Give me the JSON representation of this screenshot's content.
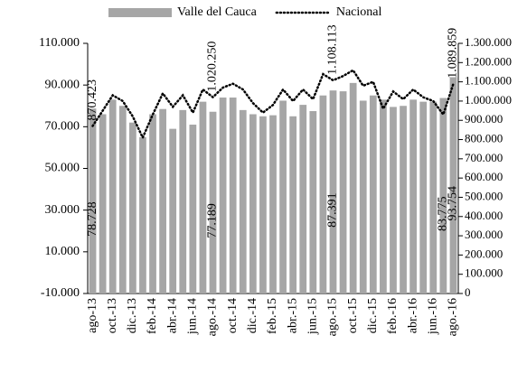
{
  "chart_data": {
    "type": "bar-line",
    "categories": [
      "ago-13",
      null,
      "oct.-13",
      null,
      "dic.-13",
      null,
      "feb.-14",
      null,
      "abr.-14",
      null,
      "jun.-14",
      null,
      "ago.-14",
      null,
      "oct.-14",
      null,
      "dic.-14",
      null,
      "feb.-15",
      null,
      "abr.-15",
      null,
      "jun.-15",
      null,
      "ago.-15",
      null,
      "oct.-15",
      null,
      "dic.-15",
      null,
      "feb.-16",
      null,
      "abr.-16",
      null,
      "jun.-16",
      null,
      "ago.-16"
    ],
    "series": [
      {
        "name": "Valle del Cauca",
        "color": "#a6a6a6",
        "kind": "bar",
        "values": [
          78728,
          76000,
          83000,
          80000,
          72000,
          65000,
          76000,
          78500,
          69000,
          78000,
          71000,
          82000,
          77189,
          84000,
          84000,
          78000,
          76000,
          75000,
          75500,
          82500,
          75000,
          80500,
          77500,
          85000,
          87391,
          87000,
          91000,
          82500,
          85000,
          83000,
          79500,
          80000,
          83000,
          82000,
          82000,
          83775,
          93754
        ],
        "value_labels": [
          "78.728",
          null,
          null,
          null,
          null,
          null,
          null,
          null,
          null,
          null,
          null,
          null,
          "77.189",
          null,
          null,
          null,
          null,
          null,
          null,
          null,
          null,
          null,
          null,
          null,
          "87.391",
          null,
          null,
          null,
          null,
          null,
          null,
          null,
          null,
          null,
          null,
          "83.775",
          "93.754"
        ]
      },
      {
        "name": "Nacional",
        "color": "#000000",
        "kind": "line",
        "axis": "y2",
        "values": [
          870423,
          950000,
          1030000,
          1000000,
          920000,
          810000,
          930000,
          1040000,
          970000,
          1030000,
          940000,
          1060000,
          1020250,
          1070000,
          1090000,
          1060000,
          990000,
          940000,
          980000,
          1060000,
          1000000,
          1060000,
          1010000,
          1140000,
          1108113,
          1130000,
          1160000,
          1080000,
          1100000,
          960000,
          1050000,
          1010000,
          1060000,
          1020000,
          1000000,
          930000,
          1089859
        ],
        "value_labels": [
          "870.423",
          null,
          null,
          null,
          null,
          null,
          null,
          null,
          null,
          null,
          null,
          null,
          "1.020.250",
          null,
          null,
          null,
          null,
          null,
          null,
          null,
          null,
          null,
          null,
          null,
          "1.108.113",
          null,
          null,
          null,
          null,
          null,
          null,
          null,
          null,
          null,
          null,
          null,
          "1.089.859"
        ]
      }
    ],
    "ylim": [
      -10000,
      110000
    ],
    "yticks": [
      {
        "value": -10000,
        "label": "-10.000"
      },
      {
        "value": 10000,
        "label": "10.000"
      },
      {
        "value": 30000,
        "label": "30.000"
      },
      {
        "value": 50000,
        "label": "50.000"
      },
      {
        "value": 70000,
        "label": "70.000"
      },
      {
        "value": 90000,
        "label": "90.000"
      },
      {
        "value": 110000,
        "label": "110.000"
      }
    ],
    "y2lim": [
      0,
      1300000
    ],
    "y2ticks": [
      0,
      {
        "value": 100000,
        "label": "100.000"
      },
      {
        "value": 200000,
        "label": "200.000"
      },
      {
        "value": 300000,
        "label": "300.000"
      },
      {
        "value": 400000,
        "label": "400.000"
      },
      {
        "value": 500000,
        "label": "500.000"
      },
      {
        "value": 600000,
        "label": "600.000"
      },
      {
        "value": 700000,
        "label": "700.000"
      },
      {
        "value": 800000,
        "label": "800.000"
      },
      {
        "value": 900000,
        "label": "900.000"
      },
      {
        "value": 1000000,
        "label": "1.000.000"
      },
      {
        "value": 1100000,
        "label": "1.100.000"
      },
      {
        "value": 1200000,
        "label": "1.200.000"
      },
      {
        "value": 1300000,
        "label": "1.300.000"
      }
    ]
  }
}
